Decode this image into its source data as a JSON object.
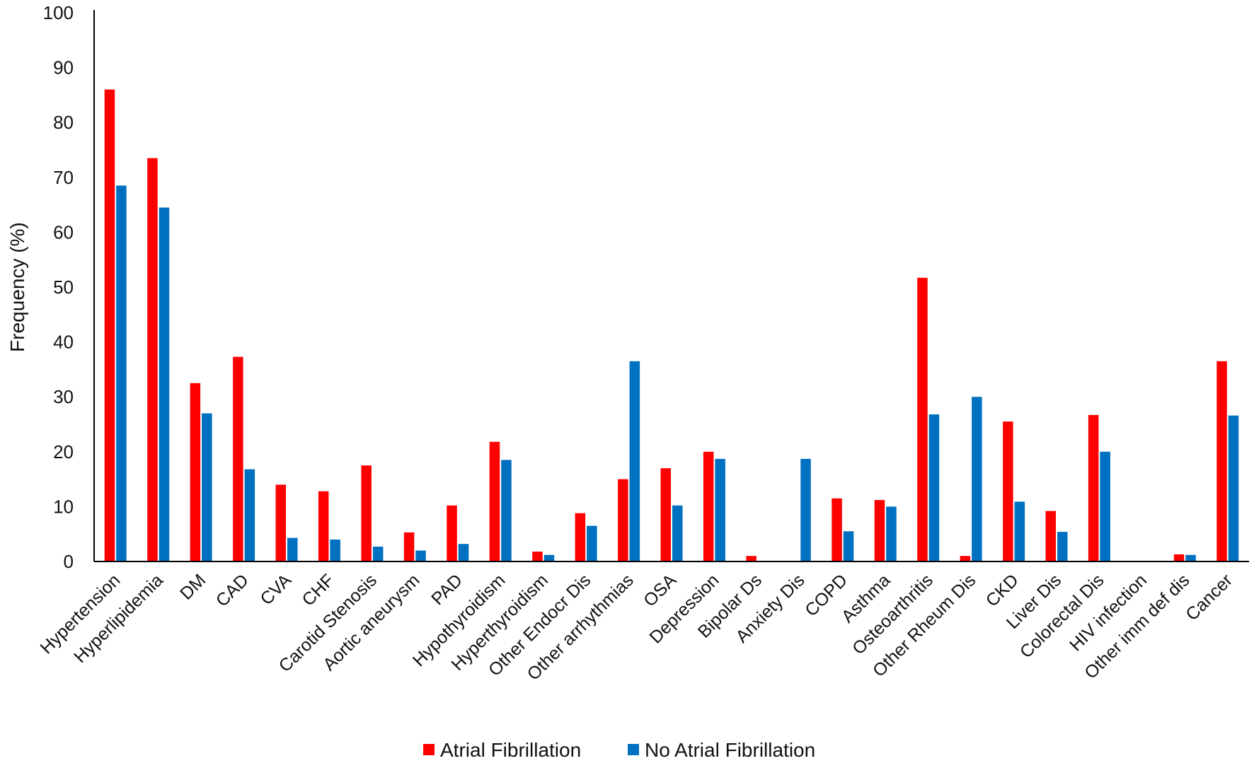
{
  "chart_data": {
    "type": "bar",
    "title": "",
    "xlabel": "",
    "ylabel": "Frequency (%)",
    "ylim": [
      0,
      100
    ],
    "yticks": [
      0,
      10,
      20,
      30,
      40,
      50,
      60,
      70,
      80,
      90,
      100
    ],
    "grid": false,
    "legend_position": "bottom-center",
    "categories": [
      "Hypertension",
      "Hyperlipidemia",
      "DM",
      "CAD",
      "CVA",
      "CHF",
      "Carotid Stenosis",
      "Aortic aneurysm",
      "PAD",
      "Hypothyroidism",
      "Hyperthyroidism",
      "Other Endocr Dis",
      "Other arrhythmias",
      "OSA",
      "Depression",
      "Bipolar Ds",
      "Anxiety Dis",
      "COPD",
      "Asthma",
      "Osteoarthritis",
      "Other Rheum Dis",
      "CKD",
      "Liver Dis",
      "Colorectal Dis",
      "HIV infection",
      "Other imm def dis",
      "Cancer"
    ],
    "series": [
      {
        "name": "Atrial Fibrillation",
        "color": "#ff0000",
        "values": [
          86,
          73.5,
          32.5,
          37.3,
          14,
          12.8,
          17.5,
          5.3,
          10.2,
          21.8,
          1.8,
          8.8,
          15,
          17,
          20,
          1,
          0,
          11.5,
          11.2,
          51.7,
          1,
          25.5,
          9.2,
          26.7,
          0,
          1.3,
          36.5
        ]
      },
      {
        "name": "No Atrial Fibrillation",
        "color": "#0070c0",
        "values": [
          68.5,
          64.5,
          27,
          16.8,
          4.3,
          4,
          2.7,
          2,
          3.2,
          18.5,
          1.2,
          6.5,
          36.5,
          10.2,
          18.7,
          0,
          18.7,
          5.5,
          10,
          26.8,
          30,
          10.9,
          5.4,
          20,
          0,
          1.2,
          26.6
        ]
      }
    ]
  }
}
